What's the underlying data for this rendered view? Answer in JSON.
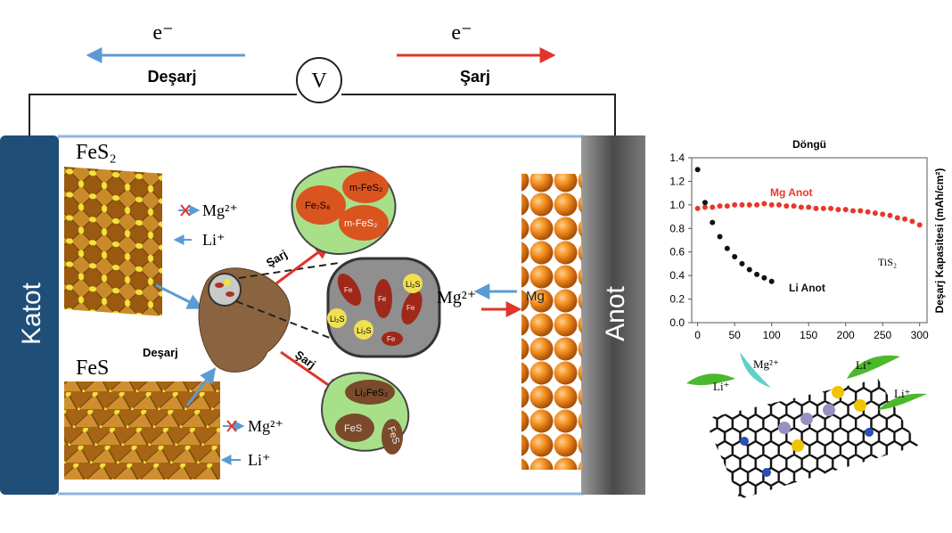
{
  "diagram": {
    "top": {
      "e_left": "e⁻",
      "discharge": "Deşarj",
      "voltmeter": "V",
      "e_right": "e⁻",
      "charge": "Şarj"
    },
    "cathode": "Katot",
    "anode": "Anot",
    "cathode_materials": [
      "FeS₂",
      "FeS"
    ],
    "ions": [
      "Mg²⁺",
      "Li⁺",
      "Mg²⁺",
      "Li⁺",
      "Mg²⁺"
    ],
    "anode_metal": "Mg",
    "process": [
      "Deşarj",
      "Şarj",
      "Şarj"
    ],
    "particle_top": [
      "Fe₇S₈",
      "m-FeS₂",
      "m-FeS₂"
    ],
    "particle_middle": [
      "Li₂S",
      "Li₂S",
      "Li₂S",
      "Fe",
      "Fe",
      "Fe",
      "Fe"
    ],
    "particle_bottom": [
      "Li₂FeS₂",
      "FeS",
      "FeS"
    ],
    "graphene_ions": [
      "Mg²⁺",
      "Li⁺",
      "Li⁺",
      "Li⁺"
    ]
  },
  "chart_data": {
    "type": "scatter",
    "title": "Döngü",
    "y_label": "Deşarj Kapasitesi (mAh/cm²)",
    "annotations": [
      "Mg Anot",
      "Li Anot",
      "TiS₂"
    ],
    "x": [
      0,
      10,
      20,
      30,
      40,
      50,
      60,
      70,
      80,
      90,
      100,
      110,
      120,
      130,
      140,
      150,
      160,
      170,
      180,
      190,
      200,
      210,
      220,
      230,
      240,
      250,
      260,
      270,
      280,
      290,
      300
    ],
    "series": [
      {
        "name": "Mg Anot",
        "color": "#e8372a",
        "values": [
          0.97,
          0.98,
          0.98,
          0.99,
          0.99,
          1.0,
          1.0,
          1.0,
          1.0,
          1.01,
          1.0,
          1.0,
          0.99,
          0.99,
          0.98,
          0.98,
          0.97,
          0.97,
          0.97,
          0.96,
          0.96,
          0.95,
          0.95,
          0.94,
          0.93,
          0.92,
          0.91,
          0.89,
          0.88,
          0.86,
          0.83
        ]
      },
      {
        "name": "Li Anot",
        "color": "#111111",
        "values": [
          1.3,
          1.02,
          0.85,
          0.73,
          0.63,
          0.56,
          0.5,
          0.45,
          0.41,
          0.38,
          0.35,
          null,
          null,
          null,
          null,
          null,
          null,
          null,
          null,
          null,
          null,
          null,
          null,
          null,
          null,
          null,
          null,
          null,
          null,
          null,
          null
        ]
      }
    ],
    "xlim": [
      -8,
      310
    ],
    "xticks": [
      0,
      50,
      100,
      150,
      200,
      250,
      300
    ],
    "ylim": [
      0,
      1.4
    ],
    "yticks": [
      {
        "value": 0,
        "label": "0.0"
      },
      0.2,
      0.4,
      0.6,
      0.8,
      {
        "value": 1,
        "label": "1.0"
      },
      1.2,
      1.4
    ],
    "grid": false
  }
}
